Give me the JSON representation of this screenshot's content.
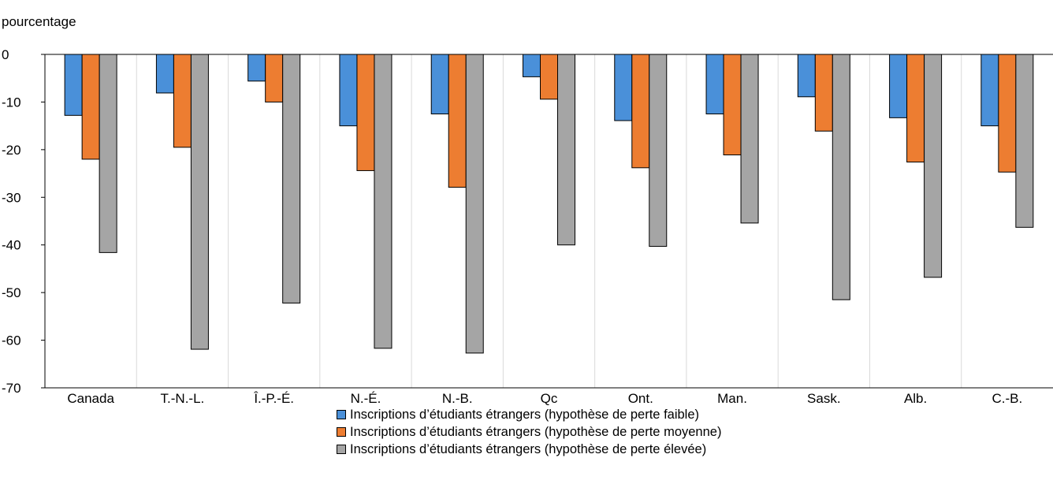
{
  "chart_data": {
    "type": "bar",
    "ylabel": "pourcentage",
    "ylim": [
      -70,
      0
    ],
    "yticks": [
      0,
      -10,
      -20,
      -30,
      -40,
      -50,
      -60,
      -70
    ],
    "categories": [
      "Canada",
      "T.-N.-L.",
      "Î.-P.-É.",
      "N.-É.",
      "N.-B.",
      "Qc",
      "Ont.",
      "Man.",
      "Sask.",
      "Alb.",
      "C.-B."
    ],
    "series": [
      {
        "name": "Inscriptions d’étudiants étrangers (hypothèse de perte faible)",
        "color": "#4a90d9",
        "values": [
          -12.8,
          -8.1,
          -5.6,
          -15.0,
          -12.5,
          -4.7,
          -13.9,
          -12.5,
          -8.9,
          -13.3,
          -15.0
        ]
      },
      {
        "name": "Inscriptions d’étudiants étrangers (hypothèse de perte moyenne)",
        "color": "#ed7d31",
        "values": [
          -22.0,
          -19.5,
          -10.0,
          -24.4,
          -27.9,
          -9.4,
          -23.8,
          -21.1,
          -16.1,
          -22.6,
          -24.7
        ]
      },
      {
        "name": "Inscriptions d’étudiants étrangers (hypothèse de perte élevée)",
        "color": "#a5a5a5",
        "values": [
          -41.6,
          -61.9,
          -52.2,
          -61.7,
          -62.7,
          -40.0,
          -40.3,
          -35.4,
          -51.5,
          -46.8,
          -36.3
        ]
      }
    ],
    "grid": "vertical separators between categories",
    "legend_position": "bottom-center"
  }
}
